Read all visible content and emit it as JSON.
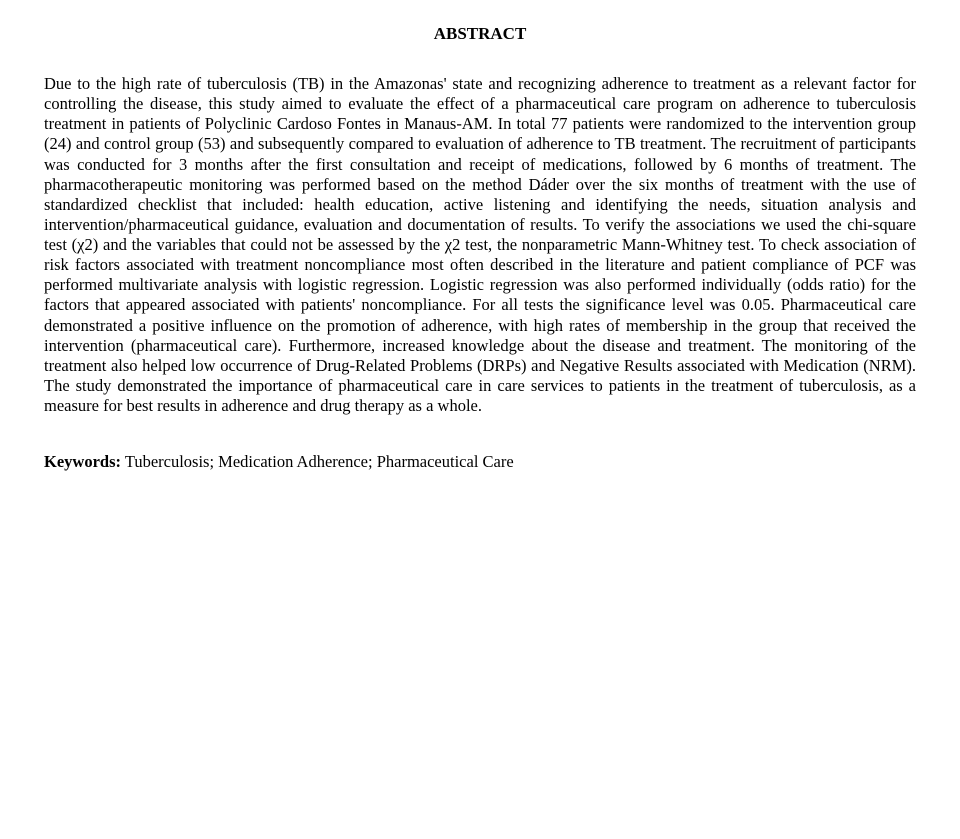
{
  "title": "ABSTRACT",
  "body": "Due to the high rate of tuberculosis (TB) in the Amazonas' state and recognizing adherence to treatment as a relevant factor for controlling the disease, this study aimed to evaluate the effect of a pharmaceutical care program on adherence to tuberculosis treatment in patients of Polyclinic Cardoso Fontes in Manaus-AM. In total 77 patients were randomized to the intervention group (24) and control group (53) and subsequently compared to evaluation of adherence to TB treatment. The recruitment of participants was conducted for 3 months after the first consultation and receipt of medications, followed by 6 months of treatment. The pharmacotherapeutic monitoring was performed based on the method Dáder over the six months of treatment with the use of standardized checklist that included: health education, active listening and identifying the needs, situation analysis and intervention/pharmaceutical guidance, evaluation and documentation of results. To verify the associations we used the chi-square test (χ2) and the variables that could not be assessed by the χ2 test, the nonparametric Mann-Whitney test. To check association of risk factors associated with treatment noncompliance most often described in the literature and patient compliance of PCF was performed multivariate analysis with logistic regression. Logistic regression was also performed individually (odds ratio) for the factors that appeared associated with patients' noncompliance. For all tests the significance level was 0.05. Pharmaceutical care demonstrated a positive influence on the promotion of adherence, with high rates of membership in the group that received the intervention (pharmaceutical care). Furthermore, increased knowledge about the disease and treatment. The monitoring of the treatment also helped low occurrence of Drug-Related Problems (DRPs) and Negative Results associated with Medication (NRM). The study demonstrated the importance of pharmaceutical care in care services to patients in the treatment of tuberculosis, as a measure for best results in adherence and drug therapy as a whole.",
  "keywordsLabel": "Keywords:",
  "keywords": " Tuberculosis; Medication Adherence; Pharmaceutical Care"
}
